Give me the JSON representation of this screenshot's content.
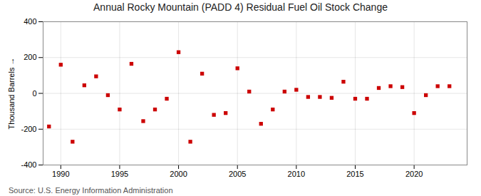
{
  "chart_data": {
    "type": "scatter",
    "title": "Annual Rocky Mountain (PADD 4) Residual Fuel Oil Stock Change",
    "ylabel": "Thousand Barrels",
    "source": "Source: U.S. Energy Information Administration",
    "x": [
      1989,
      1990,
      1991,
      1992,
      1993,
      1994,
      1995,
      1996,
      1997,
      1998,
      1999,
      2000,
      2001,
      2002,
      2003,
      2004,
      2005,
      2006,
      2007,
      2008,
      2009,
      2010,
      2011,
      2012,
      2013,
      2014,
      2015,
      2016,
      2017,
      2018,
      2019,
      2020,
      2021,
      2022,
      2023
    ],
    "values": [
      -185,
      160,
      -270,
      45,
      95,
      -10,
      -90,
      165,
      -155,
      -90,
      -30,
      230,
      -270,
      110,
      -120,
      -110,
      140,
      10,
      -170,
      -90,
      10,
      20,
      -20,
      -20,
      -25,
      65,
      -30,
      -30,
      30,
      40,
      35,
      -110,
      -10,
      40,
      40
    ],
    "color": "#cc0000",
    "marker": "square",
    "xlim": [
      1988.5,
      2024.5
    ],
    "xticks": [
      1990,
      1995,
      2000,
      2005,
      2010,
      2015,
      2020
    ],
    "ylim": [
      -400,
      400
    ],
    "yticks": [
      -400,
      -200,
      0,
      200,
      400
    ],
    "grid": true
  }
}
